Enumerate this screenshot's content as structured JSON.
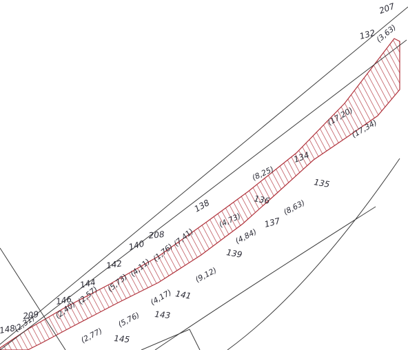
{
  "map": {
    "accent_color": "#b0313a",
    "line_color": "#3a3a3a",
    "parcel_labels": [
      "207",
      "132",
      "134",
      "135",
      "136",
      "137",
      "138",
      "139",
      "140",
      "141",
      "142",
      "143",
      "144",
      "145",
      "146",
      "148",
      "208",
      "209"
    ],
    "area_labels": [
      "(3,63)",
      "(17,20)",
      "(17,34)",
      "(8,25)",
      "(8,63)",
      "(4,73)",
      "(4,84)",
      "(7,41)",
      "(1,76)",
      "(9,12)",
      "(4,11)",
      "(4,17)",
      "(5,73)",
      "(5,76)",
      "(2,57)",
      "(2,40)",
      "(2,77)",
      "(2,31)"
    ]
  }
}
